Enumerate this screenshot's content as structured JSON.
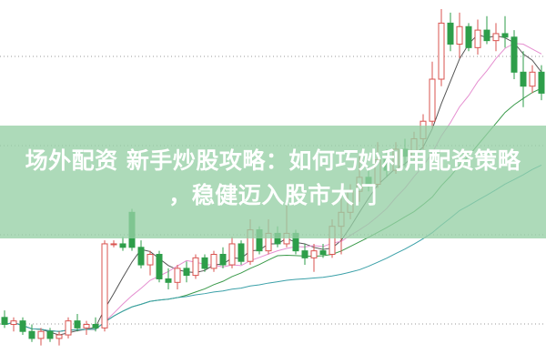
{
  "article": {
    "title_line1": "场外配资 新手炒股攻略：如何巧妙利用配资策略",
    "title_line2": "，稳健迈入股市大门"
  },
  "chart_data": {
    "type": "candlestick",
    "title": "",
    "xlabel": "",
    "ylabel": "",
    "grid": "horizontal dotted",
    "colors": {
      "up": "#d9534f",
      "down": "#2e9e4a",
      "ma5": "#555555",
      "ma10": "#e58fd0",
      "ma20": "#3a9a4a",
      "ma60": "#3aa0a8",
      "banner": "#96d0a5"
    },
    "moving_averages": [
      5,
      10,
      20,
      40
    ],
    "candles": [
      [
        12,
        14,
        9,
        10
      ],
      [
        10,
        12,
        8,
        11
      ],
      [
        11,
        12,
        7,
        8
      ],
      [
        8,
        10,
        5,
        6
      ],
      [
        6,
        9,
        4,
        8
      ],
      [
        8,
        9,
        5,
        6
      ],
      [
        6,
        8,
        4,
        7
      ],
      [
        7,
        12,
        6,
        11
      ],
      [
        11,
        13,
        8,
        9
      ],
      [
        9,
        11,
        7,
        10
      ],
      [
        10,
        12,
        8,
        9
      ],
      [
        9,
        34,
        8,
        33
      ],
      [
        33,
        34,
        32,
        33
      ],
      [
        33,
        35,
        31,
        32
      ],
      [
        42,
        43,
        31,
        32
      ],
      [
        32,
        34,
        26,
        27
      ],
      [
        27,
        31,
        24,
        30
      ],
      [
        30,
        31,
        22,
        23
      ],
      [
        23,
        26,
        20,
        22
      ],
      [
        22,
        27,
        20,
        26
      ],
      [
        26,
        28,
        22,
        24
      ],
      [
        24,
        30,
        23,
        29
      ],
      [
        29,
        30,
        25,
        26
      ],
      [
        26,
        31,
        25,
        30
      ],
      [
        30,
        32,
        26,
        27
      ],
      [
        27,
        35,
        26,
        33
      ],
      [
        33,
        34,
        27,
        28
      ],
      [
        28,
        40,
        27,
        37
      ],
      [
        37,
        38,
        30,
        31
      ],
      [
        31,
        40,
        30,
        36
      ],
      [
        36,
        38,
        32,
        33
      ],
      [
        33,
        44,
        32,
        36
      ],
      [
        36,
        37,
        30,
        31
      ],
      [
        31,
        33,
        27,
        29
      ],
      [
        29,
        33,
        25,
        31
      ],
      [
        31,
        33,
        29,
        30
      ],
      [
        30,
        40,
        29,
        38
      ],
      [
        38,
        46,
        30,
        42
      ],
      [
        42,
        50,
        40,
        48
      ],
      [
        48,
        58,
        45,
        52
      ],
      [
        52,
        55,
        48,
        50
      ],
      [
        50,
        62,
        49,
        57
      ],
      [
        57,
        60,
        52,
        54
      ],
      [
        54,
        62,
        53,
        60
      ],
      [
        60,
        63,
        55,
        58
      ],
      [
        58,
        65,
        57,
        63
      ],
      [
        63,
        70,
        60,
        68
      ],
      [
        68,
        85,
        66,
        80
      ],
      [
        80,
        100,
        78,
        96
      ],
      [
        96,
        99,
        88,
        90
      ],
      [
        90,
        99,
        86,
        95
      ],
      [
        95,
        96,
        88,
        89
      ],
      [
        89,
        97,
        87,
        94
      ],
      [
        94,
        98,
        90,
        91
      ],
      [
        91,
        96,
        88,
        93
      ],
      [
        93,
        98,
        89,
        92
      ],
      [
        92,
        94,
        80,
        82
      ],
      [
        82,
        88,
        72,
        78
      ],
      [
        78,
        84,
        76,
        82
      ],
      [
        82,
        84,
        74,
        76
      ]
    ]
  }
}
